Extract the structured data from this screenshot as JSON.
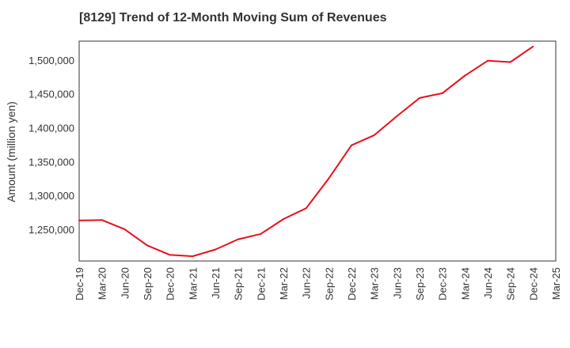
{
  "chart_data": {
    "type": "line",
    "title": "[8129]  Trend of 12-Month Moving Sum of Revenues",
    "xlabel": "",
    "ylabel": "Amount (million yen)",
    "ylim": [
      1203000,
      1528000
    ],
    "yticks": [
      1250000,
      1300000,
      1350000,
      1400000,
      1450000,
      1500000
    ],
    "ytick_labels": [
      "1,250,000",
      "1,300,000",
      "1,350,000",
      "1,400,000",
      "1,450,000",
      "1,500,000"
    ],
    "categories": [
      "Dec-19",
      "Mar-20",
      "Jun-20",
      "Sep-20",
      "Dec-20",
      "Mar-21",
      "Jun-21",
      "Sep-21",
      "Dec-21",
      "Mar-22",
      "Jun-22",
      "Sep-22",
      "Dec-22",
      "Mar-23",
      "Jun-23",
      "Sep-23",
      "Dec-23",
      "Mar-24",
      "Jun-24",
      "Sep-24",
      "Dec-24",
      "Mar-25"
    ],
    "series": [
      {
        "color": "#e8101a",
        "values": [
          1263000,
          1263500,
          1250000,
          1226000,
          1212000,
          1210000,
          1220000,
          1235000,
          1243000,
          1265000,
          1281000,
          1325000,
          1374000,
          1389000,
          1417000,
          1444000,
          1451000,
          1477000,
          1499000,
          1497000,
          1520000,
          null
        ]
      }
    ],
    "grid": true,
    "grid_style": "dotted",
    "legend": "none"
  }
}
